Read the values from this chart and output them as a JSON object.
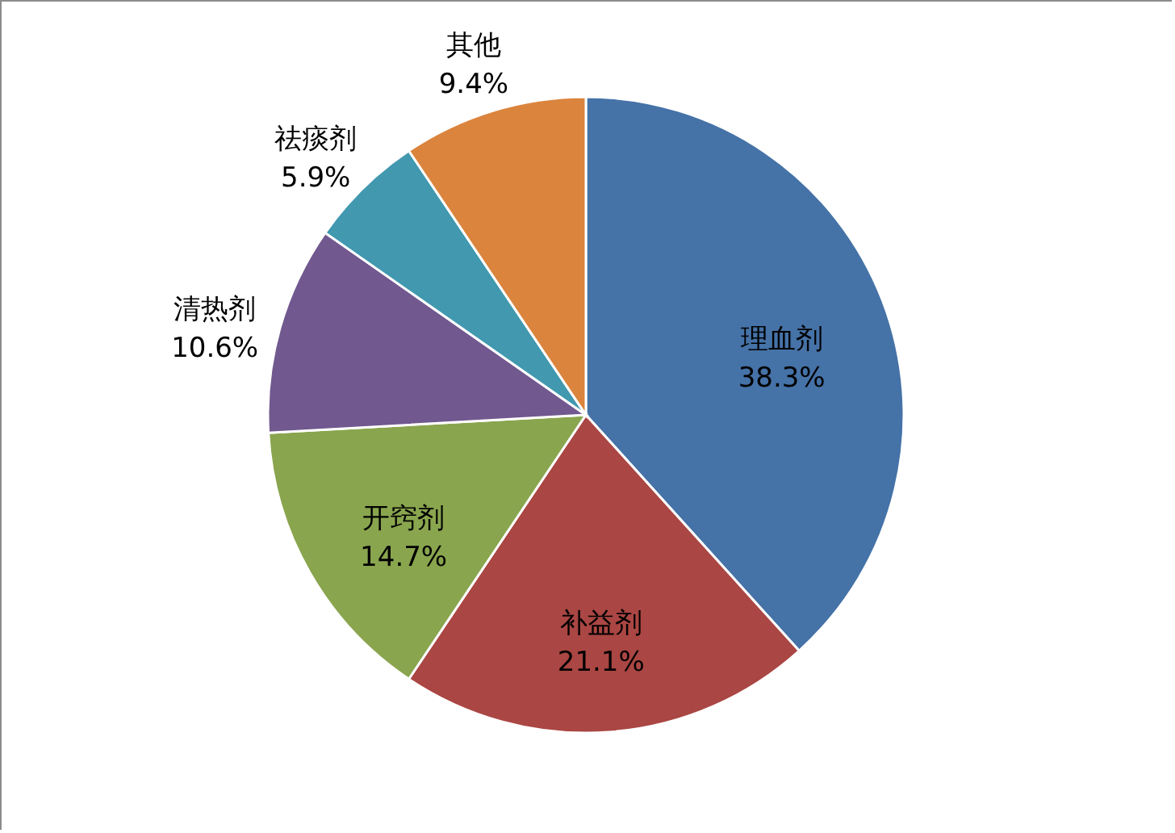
{
  "chart_data": {
    "type": "pie",
    "categories": [
      "理血剂",
      "补益剂",
      "开窍剂",
      "清热剂",
      "祛痰剂",
      "其他"
    ],
    "values": [
      38.3,
      21.1,
      14.7,
      10.6,
      5.9,
      9.4
    ],
    "colors": [
      "#4572a7",
      "#aa4643",
      "#89a54e",
      "#71588f",
      "#4198af",
      "#db843d"
    ],
    "value_labels": [
      "38.3%",
      "21.1%",
      "14.7%",
      "10.6%",
      "5.9%",
      "9.4%"
    ]
  }
}
